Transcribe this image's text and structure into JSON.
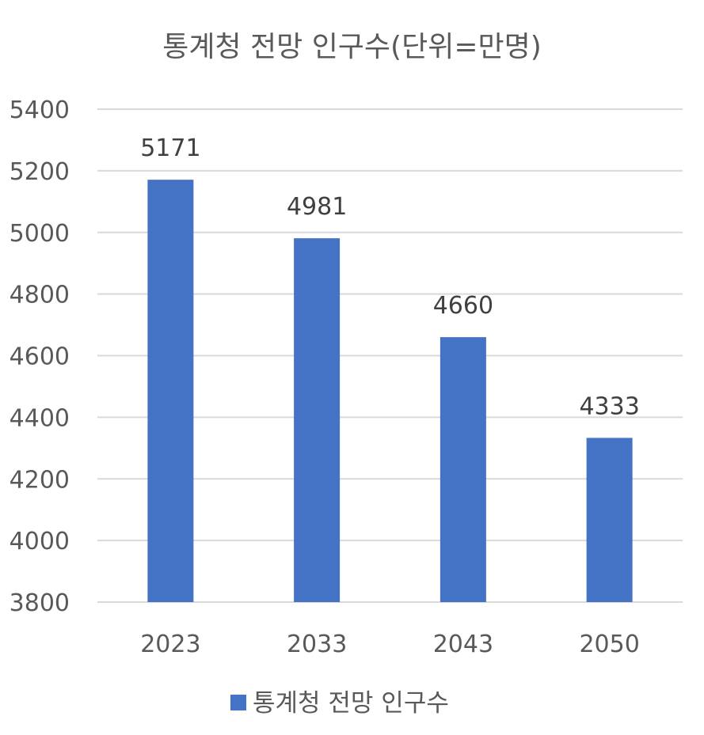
{
  "chart_data": {
    "type": "bar",
    "title": "통계청 전망 인구수(단위=만명)",
    "categories": [
      "2023",
      "2033",
      "2043",
      "2050"
    ],
    "series": [
      {
        "name": "통계청 전망 인구수",
        "values": [
          5171,
          4981,
          4660,
          4333
        ],
        "color": "#4472C4"
      }
    ],
    "ylim": [
      3800,
      5400
    ],
    "yticks": [
      3800,
      4000,
      4200,
      4400,
      4600,
      4800,
      5000,
      5200,
      5400
    ],
    "grid": true,
    "legend_position": "bottom",
    "data_labels": true
  }
}
